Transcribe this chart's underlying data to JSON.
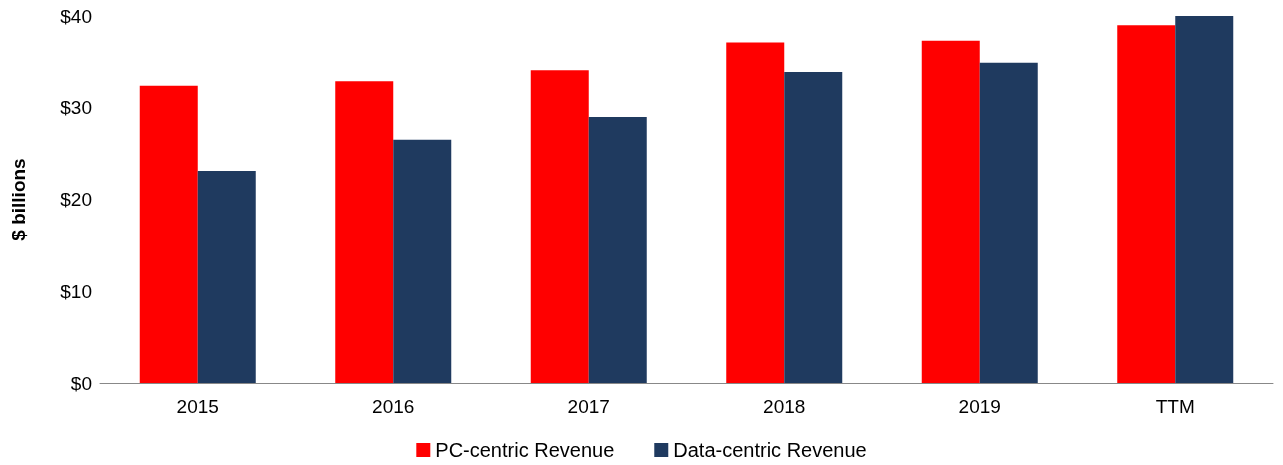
{
  "chart_data": {
    "type": "bar",
    "ylabel": "$ billions",
    "categories": [
      "2015",
      "2016",
      "2017",
      "2018",
      "2019",
      "TTM"
    ],
    "series": [
      {
        "name": "PC-centric Revenue",
        "color": "#ff0000",
        "values": [
          32.4,
          32.9,
          34.1,
          37.1,
          37.3,
          39.0
        ]
      },
      {
        "name": "Data-centric Revenue",
        "color": "#1f3a5f",
        "values": [
          23.1,
          26.5,
          29.0,
          33.9,
          34.9,
          40.0
        ]
      }
    ],
    "ylim": [
      0,
      40
    ],
    "yticks": [
      {
        "value": 0,
        "label": "$0"
      },
      {
        "value": 10,
        "label": "$10"
      },
      {
        "value": 20,
        "label": "$20"
      },
      {
        "value": 30,
        "label": "$30"
      },
      {
        "value": 40,
        "label": "$40"
      }
    ],
    "grid": false,
    "legend": "bottom"
  }
}
